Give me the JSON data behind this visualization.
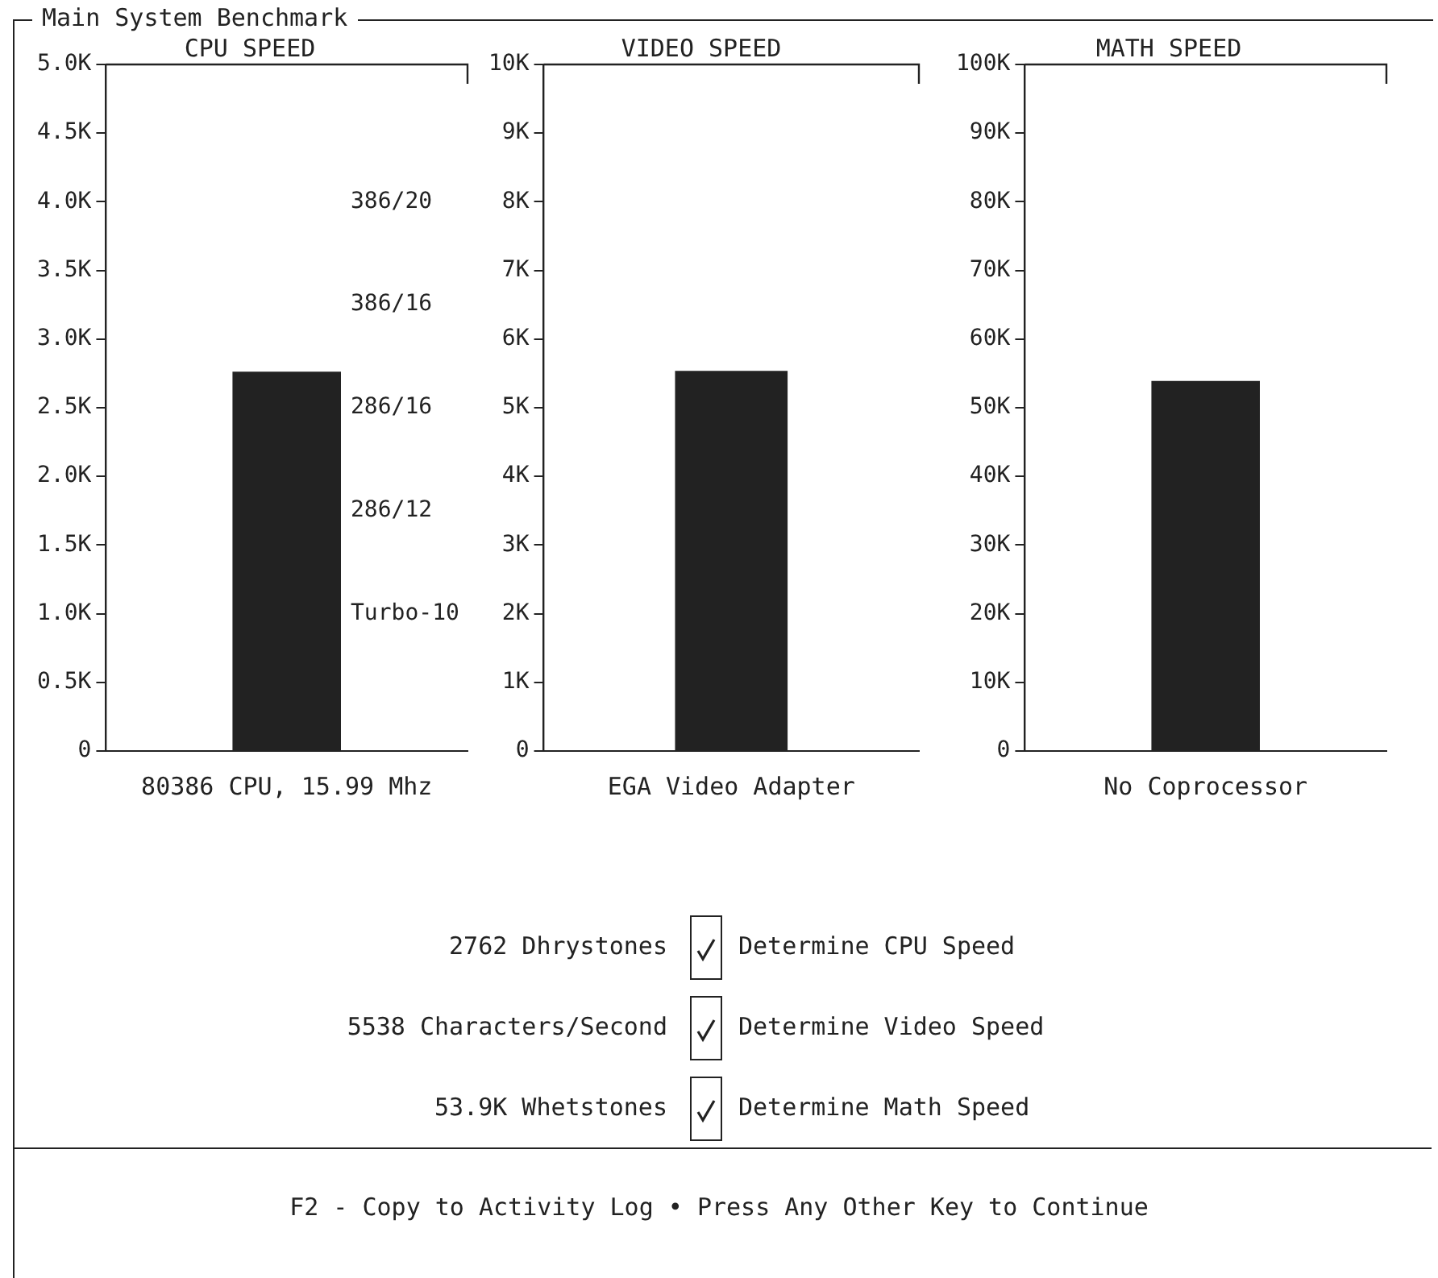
{
  "chart_data": [
    {
      "type": "bar",
      "title": "CPU SPEED",
      "xlabel": "80386 CPU, 15.99 Mhz",
      "categories": [
        null
      ],
      "values": [
        2762
      ],
      "color": "#222222",
      "ylim": [
        0,
        5000
      ],
      "yticks": [
        {
          "value": 0,
          "label": "0"
        },
        {
          "value": 500,
          "label": "0.5K"
        },
        {
          "value": 1000,
          "label": "1.0K"
        },
        {
          "value": 1500,
          "label": "1.5K"
        },
        {
          "value": 2000,
          "label": "2.0K"
        },
        {
          "value": 2500,
          "label": "2.5K"
        },
        {
          "value": 3000,
          "label": "3.0K"
        },
        {
          "value": 3500,
          "label": "3.5K"
        },
        {
          "value": 4000,
          "label": "4.0K"
        },
        {
          "value": 4500,
          "label": "4.5K"
        },
        {
          "value": 5000,
          "label": "5.0K"
        }
      ],
      "grid": false,
      "tick_labels": "y",
      "annotations": [
        "386/20",
        "386/16",
        "286/16",
        "286/12",
        "Turbo-10"
      ]
    },
    {
      "type": "bar",
      "title": "VIDEO SPEED",
      "xlabel": "EGA Video Adapter",
      "categories": [
        null
      ],
      "values": [
        5538
      ],
      "color": "#222222",
      "ylim": [
        0,
        10000
      ],
      "yticks": [
        {
          "value": 0,
          "label": "0"
        },
        {
          "value": 1000,
          "label": "1K"
        },
        {
          "value": 2000,
          "label": "2K"
        },
        {
          "value": 3000,
          "label": "3K"
        },
        {
          "value": 4000,
          "label": "4K"
        },
        {
          "value": 5000,
          "label": "5K"
        },
        {
          "value": 6000,
          "label": "6K"
        },
        {
          "value": 7000,
          "label": "7K"
        },
        {
          "value": 8000,
          "label": "8K"
        },
        {
          "value": 9000,
          "label": "9K"
        },
        {
          "value": 10000,
          "label": "10K"
        }
      ],
      "grid": false,
      "tick_labels": "y"
    },
    {
      "type": "bar",
      "title": "MATH SPEED",
      "xlabel": "No Coprocessor",
      "categories": [
        null
      ],
      "values": [
        53900
      ],
      "color": "#222222",
      "ylim": [
        0,
        100000
      ],
      "yticks": [
        {
          "value": 0,
          "label": "0"
        },
        {
          "value": 10000,
          "label": "10K"
        },
        {
          "value": 20000,
          "label": "20K"
        },
        {
          "value": 30000,
          "label": "30K"
        },
        {
          "value": 40000,
          "label": "40K"
        },
        {
          "value": 50000,
          "label": "50K"
        },
        {
          "value": 60000,
          "label": "60K"
        },
        {
          "value": 70000,
          "label": "70K"
        },
        {
          "value": 80000,
          "label": "80K"
        },
        {
          "value": 90000,
          "label": "90K"
        },
        {
          "value": 100000,
          "label": "100K"
        }
      ],
      "grid": false,
      "tick_labels": "y"
    },
    {
      "type": "other",
      "title": "Main System Benchmark",
      "annotations": [
        "2762 Dhrystones",
        "Determine CPU Speed",
        "5538 Characters/Second",
        "Determine Video Speed",
        "53.9K Whetstones",
        "Determine Math Speed",
        "F2 - Copy to Activity Log • Press Any Other Key to Continue"
      ]
    }
  ]
}
